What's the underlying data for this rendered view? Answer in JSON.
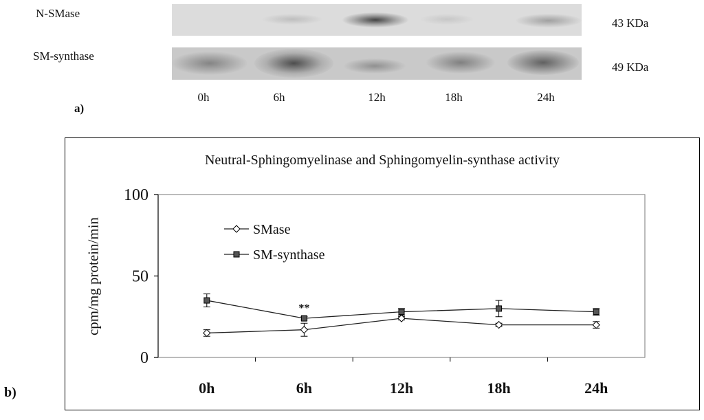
{
  "blot": {
    "rows": [
      {
        "label": "N-SMase",
        "kda": "43 KDa"
      },
      {
        "label": "SM-synthase",
        "kda": "49 KDa"
      }
    ],
    "lanes": [
      "0h",
      "6h",
      "12h",
      "18h",
      "24h"
    ],
    "panel_label": "a)"
  },
  "chart_data": {
    "type": "line",
    "title": "Neutral-Sphingomyelinase and Sphingomyelin-synthase activity",
    "ylabel": "cpm/mg protein/min",
    "xlabel": "",
    "categories": [
      "0h",
      "6h",
      "12h",
      "18h",
      "24h"
    ],
    "ylim": [
      0,
      100
    ],
    "yticks": [
      0,
      50,
      100
    ],
    "grid": false,
    "legend_position": "top-left",
    "panel_label": "b)",
    "annotation": {
      "text": "**",
      "category": "6h"
    },
    "series": [
      {
        "name": "SMase",
        "marker": "diamond",
        "color": "#222222",
        "values": [
          15,
          17,
          24,
          20,
          20
        ],
        "errors": [
          2,
          4,
          1,
          1,
          2
        ]
      },
      {
        "name": "SM-synthase",
        "marker": "square",
        "color": "#222222",
        "values": [
          35,
          24,
          28,
          30,
          28
        ],
        "errors": [
          4,
          1,
          2,
          5,
          2
        ]
      }
    ]
  }
}
